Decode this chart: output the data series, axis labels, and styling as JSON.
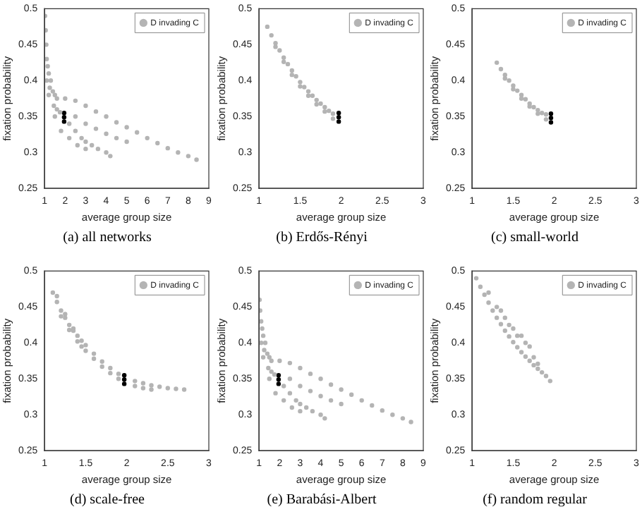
{
  "chart_data": [
    {
      "type": "scatter",
      "title": "(a) all networks",
      "xlabel": "average group size",
      "ylabel": "fixation probability",
      "xlim": [
        1,
        9
      ],
      "xticks": [
        1,
        2,
        3,
        4,
        5,
        6,
        7,
        8,
        9
      ],
      "ylim": [
        0.25,
        0.5
      ],
      "yticks": [
        0.25,
        0.3,
        0.35,
        0.4,
        0.45,
        0.5
      ],
      "legend": "top right",
      "marker": "circle",
      "grid": false,
      "series": [
        {
          "name": "D invading C",
          "color": "#b4b4b4",
          "x": [
            1.02,
            1.05,
            1.08,
            1.1,
            1.15,
            1.2,
            1.1,
            1.3,
            1.25,
            1.4,
            1.5,
            1.6,
            1.45,
            1.6,
            1.75,
            2.2,
            2.5,
            2.8,
            3.0,
            3.3,
            3.6,
            4.0,
            4.2,
            2.0,
            2.5,
            3.0,
            3.5,
            4.0,
            4.5,
            5.0,
            5.5,
            6.0,
            6.5,
            7.0,
            7.5,
            8.0,
            8.4,
            2.5,
            3.0,
            3.5,
            4.0,
            4.5,
            5.0,
            2.2,
            2.6,
            3.0,
            1.8,
            1.5,
            1.2
          ],
          "values": [
            0.49,
            0.47,
            0.45,
            0.43,
            0.42,
            0.41,
            0.4,
            0.4,
            0.39,
            0.385,
            0.38,
            0.375,
            0.365,
            0.36,
            0.356,
            0.34,
            0.33,
            0.32,
            0.315,
            0.31,
            0.305,
            0.3,
            0.295,
            0.375,
            0.372,
            0.365,
            0.357,
            0.35,
            0.342,
            0.335,
            0.328,
            0.32,
            0.313,
            0.306,
            0.3,
            0.295,
            0.29,
            0.35,
            0.34,
            0.333,
            0.326,
            0.32,
            0.315,
            0.32,
            0.31,
            0.305,
            0.33,
            0.35,
            0.38
          ]
        },
        {
          "color": "#000000",
          "x": [
            1.95,
            1.95,
            1.95
          ],
          "values": [
            0.343,
            0.349,
            0.355
          ]
        }
      ]
    },
    {
      "type": "scatter",
      "title": "(b) Erdős-Rényi",
      "xlabel": "average group size",
      "ylabel": "fixation probability",
      "xlim": [
        1,
        3
      ],
      "xticks": [
        1,
        1.5,
        2,
        2.5,
        3
      ],
      "ylim": [
        0.25,
        0.5
      ],
      "yticks": [
        0.25,
        0.3,
        0.35,
        0.4,
        0.45,
        0.5
      ],
      "legend": "top right",
      "marker": "circle",
      "grid": false,
      "series": [
        {
          "name": "D invading C",
          "color": "#b4b4b4",
          "x": [
            1.1,
            1.15,
            1.2,
            1.25,
            1.3,
            1.35,
            1.4,
            1.45,
            1.5,
            1.55,
            1.6,
            1.65,
            1.7,
            1.75,
            1.8,
            1.85,
            1.9,
            1.2,
            1.3,
            1.4,
            1.5,
            1.6,
            1.7,
            1.8,
            1.9
          ],
          "values": [
            0.475,
            0.463,
            0.452,
            0.442,
            0.432,
            0.423,
            0.414,
            0.406,
            0.398,
            0.391,
            0.385,
            0.379,
            0.373,
            0.368,
            0.363,
            0.358,
            0.354,
            0.447,
            0.426,
            0.408,
            0.392,
            0.379,
            0.367,
            0.357,
            0.347
          ]
        },
        {
          "color": "#000000",
          "x": [
            1.97,
            1.97,
            1.97
          ],
          "values": [
            0.343,
            0.349,
            0.355
          ]
        }
      ]
    },
    {
      "type": "scatter",
      "title": "(c) small-world",
      "xlabel": "average group size",
      "ylabel": "fixation probability",
      "xlim": [
        1,
        3
      ],
      "xticks": [
        1,
        1.5,
        2,
        2.5,
        3
      ],
      "ylim": [
        0.25,
        0.5
      ],
      "yticks": [
        0.25,
        0.3,
        0.35,
        0.4,
        0.45,
        0.5
      ],
      "legend": "top right",
      "marker": "circle",
      "grid": false,
      "series": [
        {
          "name": "D invading C",
          "color": "#b4b4b4",
          "x": [
            1.3,
            1.35,
            1.4,
            1.45,
            1.5,
            1.55,
            1.6,
            1.65,
            1.7,
            1.75,
            1.8,
            1.85,
            1.9,
            1.4,
            1.5,
            1.6,
            1.7,
            1.8,
            1.9
          ],
          "values": [
            0.425,
            0.416,
            0.408,
            0.4,
            0.393,
            0.386,
            0.38,
            0.374,
            0.368,
            0.363,
            0.359,
            0.355,
            0.353,
            0.403,
            0.388,
            0.375,
            0.364,
            0.354,
            0.346
          ]
        },
        {
          "color": "#000000",
          "x": [
            1.96,
            1.96,
            1.96
          ],
          "values": [
            0.342,
            0.348,
            0.354
          ]
        }
      ]
    },
    {
      "type": "scatter",
      "title": "(d) scale-free",
      "xlabel": "average group size",
      "ylabel": "fixation probability",
      "xlim": [
        1,
        3
      ],
      "xticks": [
        1,
        1.5,
        2,
        2.5,
        3
      ],
      "ylim": [
        0.25,
        0.5
      ],
      "yticks": [
        0.25,
        0.3,
        0.35,
        0.4,
        0.45,
        0.5
      ],
      "legend": "top right",
      "marker": "circle",
      "grid": false,
      "series": [
        {
          "name": "D invading C",
          "color": "#b4b4b4",
          "x": [
            1.1,
            1.15,
            1.2,
            1.25,
            1.3,
            1.35,
            1.4,
            1.45,
            1.5,
            1.6,
            1.7,
            1.8,
            1.9,
            2.1,
            2.2,
            2.3,
            2.4,
            2.5,
            2.6,
            2.7,
            1.2,
            1.3,
            1.4,
            1.5,
            1.6,
            1.7,
            1.8,
            1.9,
            2.1,
            2.2,
            2.3,
            1.15,
            1.25,
            1.35,
            1.45
          ],
          "values": [
            0.47,
            0.457,
            0.445,
            0.435,
            0.425,
            0.417,
            0.41,
            0.403,
            0.397,
            0.385,
            0.374,
            0.365,
            0.357,
            0.347,
            0.344,
            0.341,
            0.339,
            0.337,
            0.336,
            0.335,
            0.437,
            0.418,
            0.402,
            0.389,
            0.378,
            0.367,
            0.358,
            0.35,
            0.34,
            0.337,
            0.335,
            0.465,
            0.44,
            0.42,
            0.395
          ]
        },
        {
          "color": "#000000",
          "x": [
            1.97,
            1.97,
            1.97
          ],
          "values": [
            0.343,
            0.349,
            0.355
          ]
        }
      ]
    },
    {
      "type": "scatter",
      "title": "(e) Barabási-Albert",
      "xlabel": "average group size",
      "ylabel": "fixation probability",
      "xlim": [
        1,
        9
      ],
      "xticks": [
        1,
        2,
        3,
        4,
        5,
        6,
        7,
        8,
        9
      ],
      "ylim": [
        0.25,
        0.5
      ],
      "yticks": [
        0.25,
        0.3,
        0.35,
        0.4,
        0.45,
        0.5
      ],
      "legend": "top right",
      "marker": "circle",
      "grid": false,
      "series": [
        {
          "name": "D invading C",
          "color": "#b4b4b4",
          "x": [
            1.02,
            1.05,
            1.1,
            1.15,
            1.2,
            1.1,
            1.3,
            1.25,
            1.4,
            1.5,
            1.6,
            1.45,
            1.6,
            1.75,
            2.2,
            2.5,
            2.8,
            3.0,
            3.3,
            3.6,
            4.0,
            4.2,
            2.0,
            2.5,
            3.0,
            3.5,
            4.0,
            4.5,
            5.0,
            5.5,
            6.0,
            6.5,
            7.0,
            7.5,
            8.0,
            8.4,
            2.5,
            3.0,
            3.5,
            4.0,
            4.5,
            5.0,
            2.2,
            2.6,
            3.0,
            1.8,
            1.5,
            1.2
          ],
          "values": [
            0.46,
            0.445,
            0.43,
            0.42,
            0.41,
            0.4,
            0.4,
            0.39,
            0.385,
            0.38,
            0.375,
            0.365,
            0.36,
            0.356,
            0.34,
            0.33,
            0.32,
            0.315,
            0.31,
            0.305,
            0.3,
            0.295,
            0.375,
            0.372,
            0.365,
            0.357,
            0.35,
            0.342,
            0.335,
            0.328,
            0.32,
            0.313,
            0.306,
            0.3,
            0.295,
            0.29,
            0.35,
            0.34,
            0.333,
            0.326,
            0.32,
            0.315,
            0.32,
            0.31,
            0.305,
            0.33,
            0.35,
            0.38
          ]
        },
        {
          "color": "#000000",
          "x": [
            1.95,
            1.95,
            1.95
          ],
          "values": [
            0.343,
            0.349,
            0.355
          ]
        }
      ]
    },
    {
      "type": "scatter",
      "title": "(f) random regular",
      "xlabel": "average group size",
      "ylabel": "fixation probability",
      "xlim": [
        1,
        3
      ],
      "xticks": [
        1,
        1.5,
        2,
        2.5,
        3
      ],
      "ylim": [
        0.25,
        0.5
      ],
      "yticks": [
        0.25,
        0.3,
        0.35,
        0.4,
        0.45,
        0.5
      ],
      "legend": "top right",
      "marker": "circle",
      "grid": false,
      "series": [
        {
          "name": "D invading C",
          "color": "#b4b4b4",
          "x": [
            1.05,
            1.1,
            1.15,
            1.2,
            1.25,
            1.3,
            1.35,
            1.4,
            1.45,
            1.5,
            1.55,
            1.6,
            1.65,
            1.7,
            1.75,
            1.8,
            1.85,
            1.9,
            1.95,
            1.2,
            1.3,
            1.4,
            1.5,
            1.6,
            1.7,
            1.75,
            1.8,
            1.35,
            1.45,
            1.55,
            1.65
          ],
          "values": [
            0.49,
            0.478,
            0.467,
            0.456,
            0.445,
            0.435,
            0.426,
            0.417,
            0.409,
            0.401,
            0.394,
            0.387,
            0.381,
            0.375,
            0.369,
            0.364,
            0.359,
            0.354,
            0.347,
            0.47,
            0.45,
            0.435,
            0.42,
            0.41,
            0.395,
            0.38,
            0.371,
            0.445,
            0.425,
            0.41,
            0.4
          ]
        }
      ]
    }
  ]
}
